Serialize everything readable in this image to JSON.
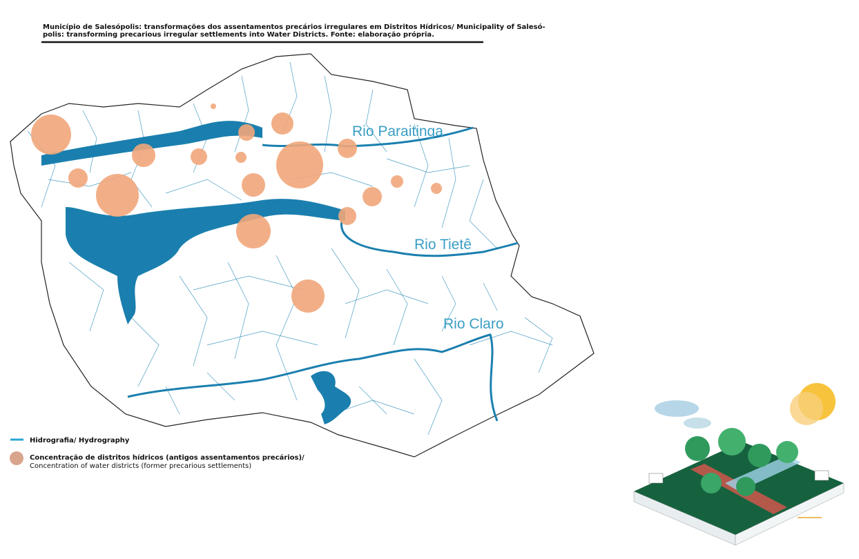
{
  "caption": {
    "lines": [
      "Município de Salesópolis: transformações dos assentamentos precários irregulares em Distritos Hídricos/ Municipality of Salesó-",
      "polis: transforming precarious irregular settlements into Water Districts. Fonte: elaboração própria."
    ]
  },
  "rivers": [
    "Rio Paraitinga",
    "Rio Tietê",
    "Rio Claro"
  ],
  "legend": [
    {
      "label": "Hidrografia/ Hydrography"
    },
    {
      "label": "Concentração de distritos hídricos (antigos assentamentos precários)/",
      "sublabel": "Concentration of water districts (former precarious settlements)"
    }
  ]
}
